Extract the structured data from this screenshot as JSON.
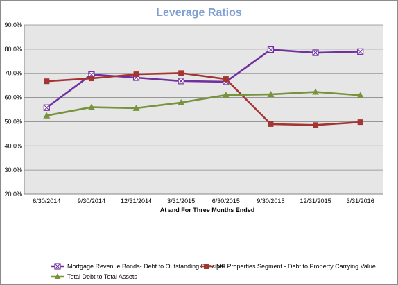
{
  "chart_data": {
    "type": "line",
    "title": "Leverage Ratios",
    "xlabel": "At and For Three Months Ended",
    "ylabel": "",
    "categories": [
      "6/30/2014",
      "9/30/2014",
      "12/31/2014",
      "3/31/2015",
      "6/30/2015",
      "9/30/2015",
      "12/31/2015",
      "3/31/2016"
    ],
    "yticks": [
      "20.0%",
      "30.0%",
      "40.0%",
      "50.0%",
      "60.0%",
      "70.0%",
      "80.0%",
      "90.0%"
    ],
    "ylim": [
      20,
      90
    ],
    "grid": true,
    "legend_position": "bottom",
    "series": [
      {
        "name": "Mortgage Revenue Bonds- Debt to Outstanding Principal",
        "color": "#7030a0",
        "marker": "box-x",
        "values": [
          55.8,
          69.5,
          68.2,
          66.8,
          66.5,
          79.8,
          78.5,
          79.0
        ]
      },
      {
        "name": "MF Properties Segment - Debt to Property Carrying Value",
        "color": "#a33532",
        "marker": "square",
        "values": [
          66.7,
          67.9,
          69.6,
          70.1,
          67.6,
          49.0,
          48.6,
          49.8
        ]
      },
      {
        "name": "Total Debt to Total Assets",
        "color": "#77933c",
        "marker": "triangle",
        "values": [
          52.5,
          56.0,
          55.6,
          57.9,
          61.0,
          61.3,
          62.3,
          60.9
        ]
      }
    ]
  }
}
